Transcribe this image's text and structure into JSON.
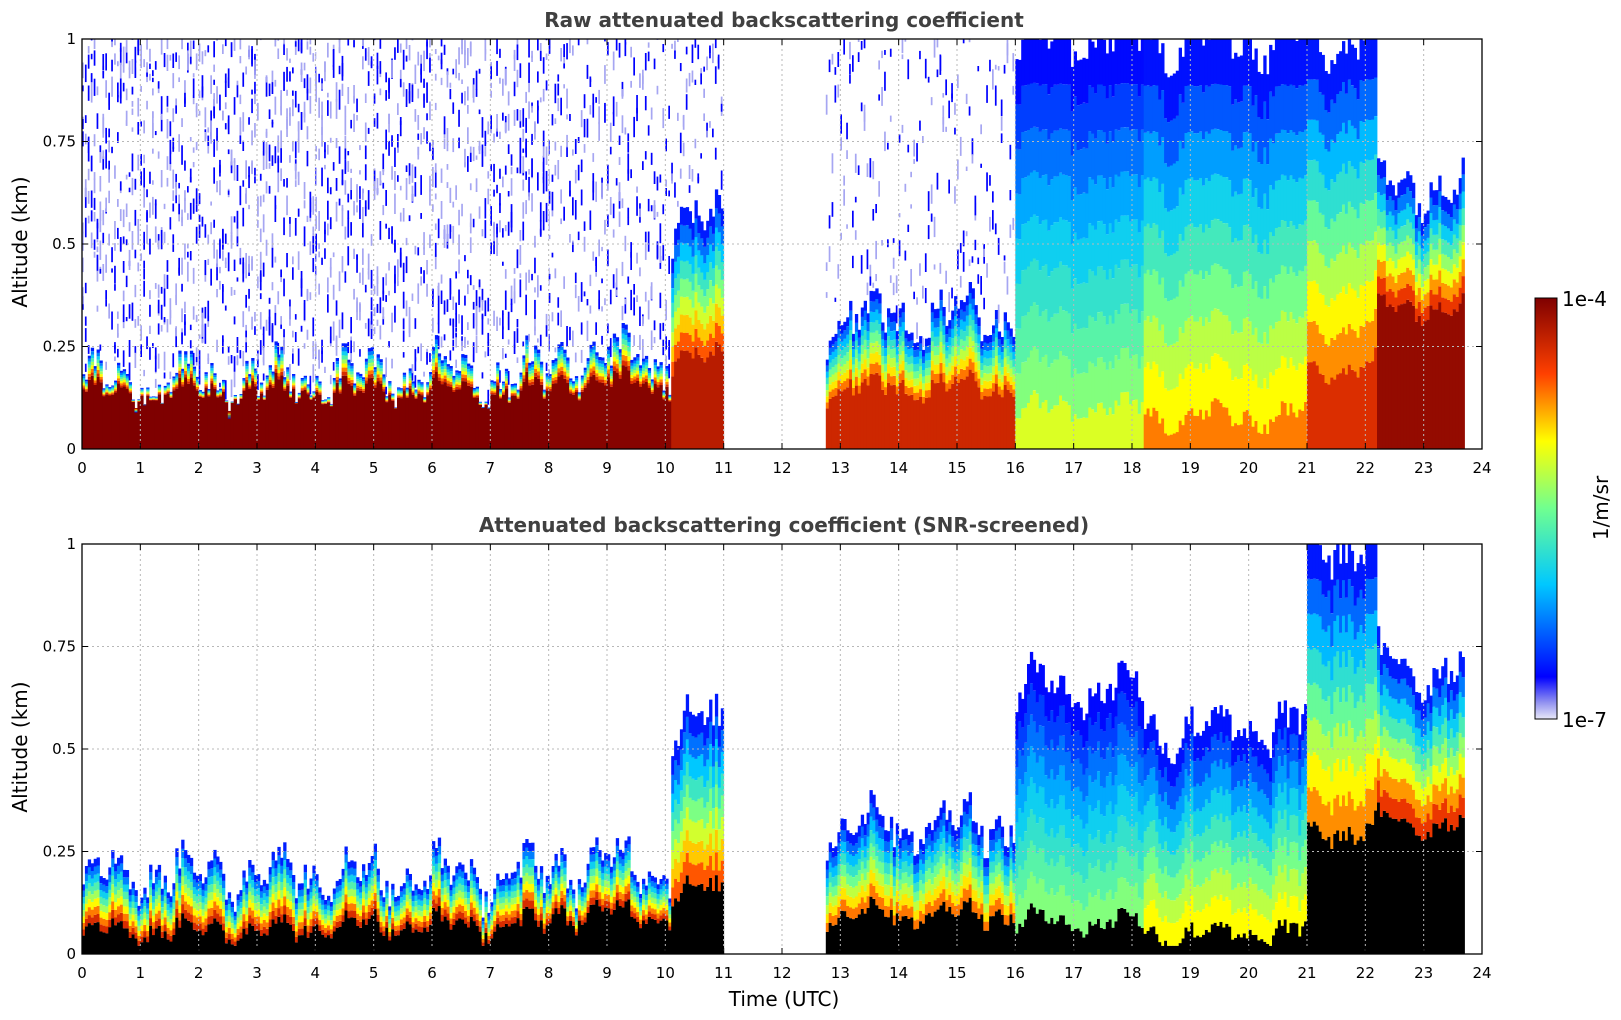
{
  "chart_data": [
    {
      "type": "heatmap",
      "title": "Raw attenuated backscattering coefficient",
      "xlabel": "",
      "ylabel": "Altitude (km)",
      "xlim": [
        0,
        24
      ],
      "ylim": [
        0,
        1
      ],
      "xticks": [
        "0",
        "1",
        "2",
        "3",
        "4",
        "5",
        "6",
        "7",
        "8",
        "9",
        "10",
        "11",
        "12",
        "13",
        "14",
        "15",
        "16",
        "17",
        "18",
        "19",
        "20",
        "21",
        "22",
        "23",
        "24"
      ],
      "yticks": [
        "0",
        "0.25",
        "0.5",
        "0.75",
        "1"
      ],
      "grid": true,
      "screened": false,
      "data_gaps": [
        [
          11.0,
          12.75
        ]
      ],
      "columns": [
        {
          "t": [
            0,
            4
          ],
          "top": 0.14,
          "base": 0.17,
          "noise": 1.0,
          "level": 0.93
        },
        {
          "t": [
            4,
            8
          ],
          "top": 0.14,
          "base": 0.18,
          "noise": 0.9,
          "level": 0.93
        },
        {
          "t": [
            8,
            10.1
          ],
          "top": 0.16,
          "base": 0.22,
          "noise": 0.6,
          "level": 0.92
        },
        {
          "t": [
            10.1,
            11
          ],
          "top": 0.22,
          "base": 0.55,
          "noise": 0.3,
          "level": 0.85
        },
        {
          "t": [
            12.75,
            16
          ],
          "top": 0.15,
          "base": 0.32,
          "noise": 0.25,
          "level": 0.82
        },
        {
          "t": [
            16,
            18.2
          ],
          "top": 0.1,
          "base": 1.0,
          "noise": 0.0,
          "level": 0.55
        },
        {
          "t": [
            18.2,
            21
          ],
          "top": 0.08,
          "base": 1.0,
          "noise": 0.0,
          "level": 0.7
        },
        {
          "t": [
            21,
            22.2
          ],
          "top": 0.2,
          "base": 1.0,
          "noise": 0.0,
          "level": 0.8
        },
        {
          "t": [
            22.2,
            23.7
          ],
          "top": 0.35,
          "base": 0.65,
          "noise": 0.0,
          "level": 0.9
        }
      ]
    },
    {
      "type": "heatmap",
      "title": "Attenuated backscattering coefficient (SNR-screened)",
      "xlabel": "Time (UTC)",
      "ylabel": "Altitude (km)",
      "xlim": [
        0,
        24
      ],
      "ylim": [
        0,
        1
      ],
      "xticks": [
        "0",
        "1",
        "2",
        "3",
        "4",
        "5",
        "6",
        "7",
        "8",
        "9",
        "10",
        "11",
        "12",
        "13",
        "14",
        "15",
        "16",
        "17",
        "18",
        "19",
        "20",
        "21",
        "22",
        "23",
        "24"
      ],
      "yticks": [
        "0",
        "0.25",
        "0.5",
        "0.75",
        "1"
      ],
      "grid": true,
      "screened": true,
      "data_gaps": [
        [
          11.0,
          12.75
        ]
      ],
      "columns": [
        {
          "t": [
            0,
            4
          ],
          "top": 0.06,
          "base": 0.2,
          "noise": 0.0,
          "level": 0.93
        },
        {
          "t": [
            4,
            8
          ],
          "top": 0.07,
          "base": 0.19,
          "noise": 0.0,
          "level": 0.93
        },
        {
          "t": [
            8,
            10.1
          ],
          "top": 0.1,
          "base": 0.22,
          "noise": 0.0,
          "level": 0.92
        },
        {
          "t": [
            10.1,
            11
          ],
          "top": 0.15,
          "base": 0.55,
          "noise": 0.0,
          "level": 0.85
        },
        {
          "t": [
            12.75,
            16
          ],
          "top": 0.1,
          "base": 0.32,
          "noise": 0.0,
          "level": 0.82
        },
        {
          "t": [
            16,
            18.2
          ],
          "top": 0.08,
          "base": 0.65,
          "noise": 0.0,
          "level": 0.55
        },
        {
          "t": [
            18.2,
            21
          ],
          "top": 0.05,
          "base": 0.55,
          "noise": 0.0,
          "level": 0.7
        },
        {
          "t": [
            21,
            22.2
          ],
          "top": 0.3,
          "base": 1.0,
          "noise": 0.0,
          "level": 0.8
        },
        {
          "t": [
            22.2,
            23.7
          ],
          "top": 0.32,
          "base": 0.7,
          "noise": 0.0,
          "level": 0.9
        }
      ]
    }
  ],
  "colorbar": {
    "max_label": "1e-4",
    "min_label": "1e-7",
    "unit_label": "1/m/sr",
    "colormap": "jet",
    "min_color": "#e8e8f8",
    "max_color": "#7f0000"
  }
}
